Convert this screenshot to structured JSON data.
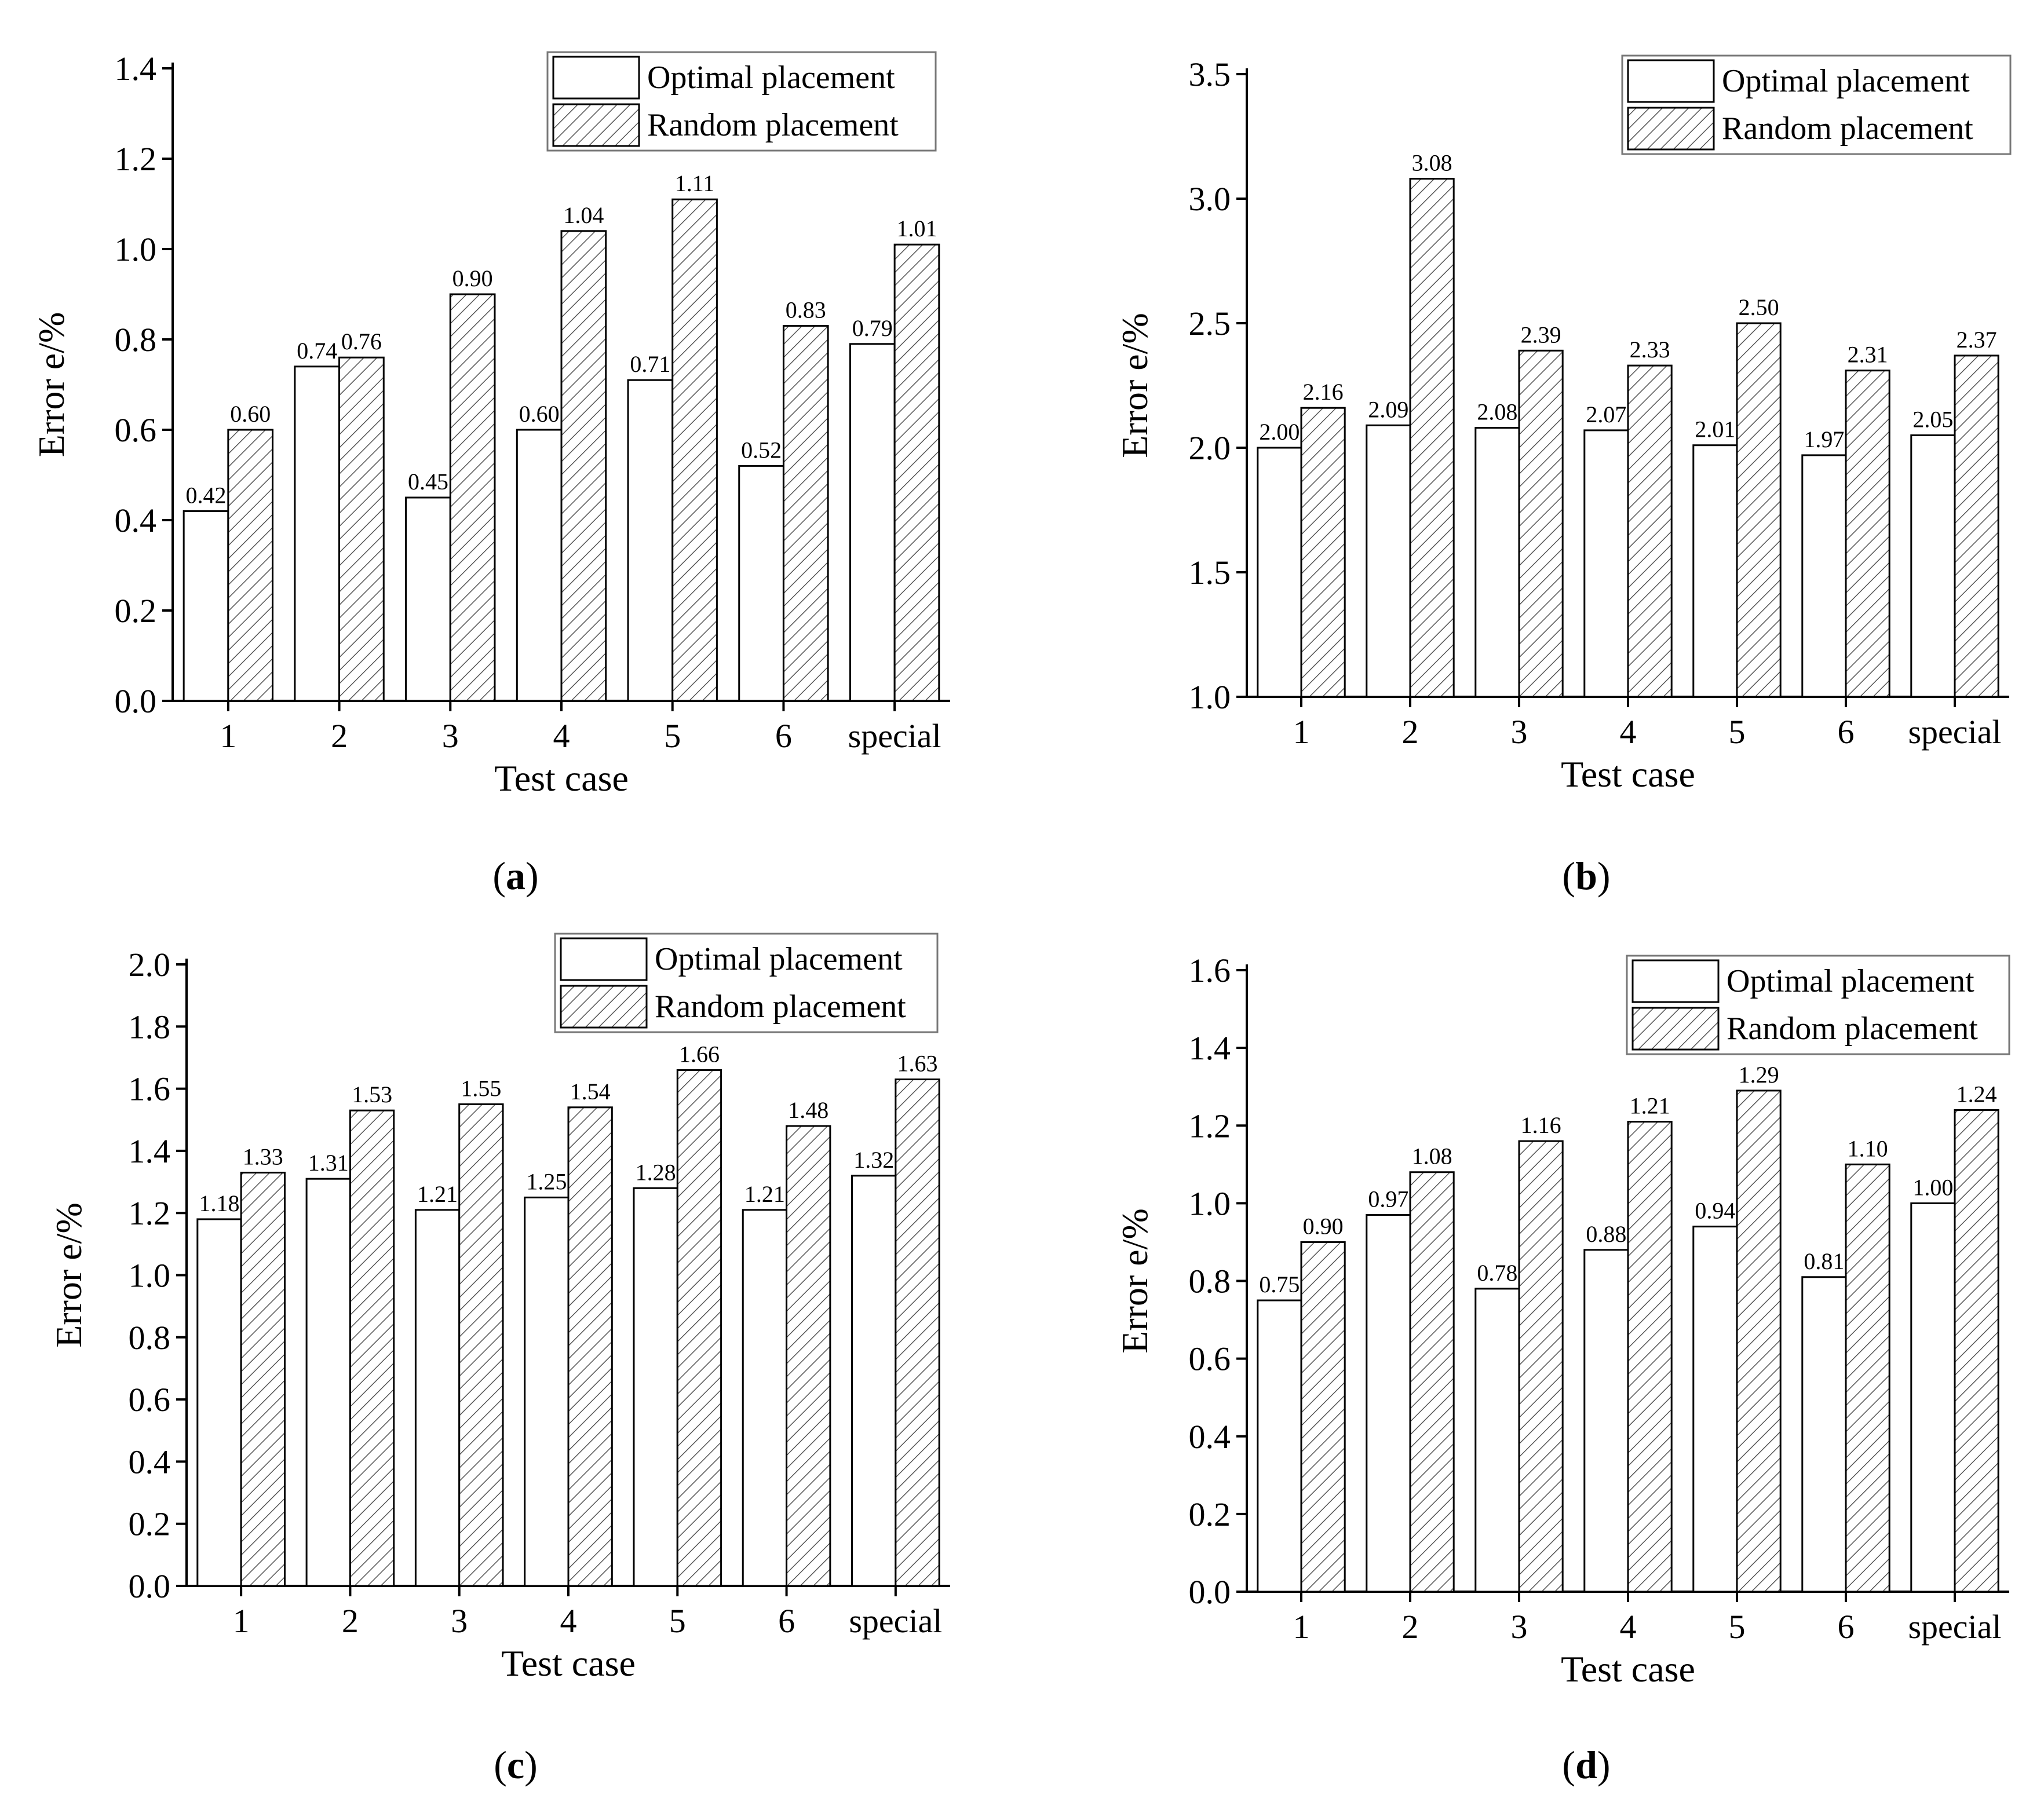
{
  "figure": {
    "panel_count": 4
  },
  "chart_data": [
    {
      "type": "bar",
      "panel": "a",
      "xlabel": "Test case",
      "ylabel": "Error e/%",
      "ylim": [
        0,
        1.4
      ],
      "yticks": [
        "0.0",
        "0.2",
        "0.4",
        "0.6",
        "0.8",
        "1.0",
        "1.2",
        "1.4"
      ],
      "categories": [
        "1",
        "2",
        "3",
        "4",
        "5",
        "6",
        "special"
      ],
      "legend_position": "top-right",
      "series": [
        {
          "name": "Optimal placement",
          "pattern": "plain",
          "values": [
            0.42,
            0.74,
            0.45,
            0.6,
            0.71,
            0.52,
            0.79
          ],
          "labels": [
            "0.42",
            "0.74",
            "0.45",
            "0.60",
            "0.71",
            "0.52",
            "0.79"
          ]
        },
        {
          "name": "Random placement",
          "pattern": "hatched",
          "values": [
            0.6,
            0.76,
            0.9,
            1.04,
            1.11,
            0.83,
            1.01
          ],
          "labels": [
            "0.60",
            "0.76",
            "0.90",
            "1.04",
            "1.11",
            "0.83",
            "1.01"
          ]
        }
      ]
    },
    {
      "type": "bar",
      "panel": "b",
      "xlabel": "Test case",
      "ylabel": "Error e/%",
      "ylim": [
        1.0,
        3.5
      ],
      "yticks": [
        "1.0",
        "1.5",
        "2.0",
        "2.5",
        "3.0",
        "3.5"
      ],
      "categories": [
        "1",
        "2",
        "3",
        "4",
        "5",
        "6",
        "special"
      ],
      "legend_position": "top-right",
      "series": [
        {
          "name": "Optimal placement",
          "pattern": "plain",
          "values": [
            2.0,
            2.09,
            2.08,
            2.07,
            2.01,
            1.97,
            2.05
          ],
          "labels": [
            "2.00",
            "2.09",
            "2.08",
            "2.07",
            "2.01",
            "1.97",
            "2.05"
          ]
        },
        {
          "name": "Random placement",
          "pattern": "hatched",
          "values": [
            2.16,
            3.08,
            2.39,
            2.33,
            2.5,
            2.31,
            2.37
          ],
          "labels": [
            "2.16",
            "3.08",
            "2.39",
            "2.33",
            "2.50",
            "2.31",
            "2.37"
          ]
        }
      ]
    },
    {
      "type": "bar",
      "panel": "c",
      "xlabel": "Test case",
      "ylabel": "Error e/%",
      "ylim": [
        0,
        2.0
      ],
      "yticks": [
        "0.0",
        "0.2",
        "0.4",
        "0.6",
        "0.8",
        "1.0",
        "1.2",
        "1.4",
        "1.6",
        "1.8",
        "2.0"
      ],
      "categories": [
        "1",
        "2",
        "3",
        "4",
        "5",
        "6",
        "special"
      ],
      "legend_position": "top-right",
      "series": [
        {
          "name": "Optimal placement",
          "pattern": "plain",
          "values": [
            1.18,
            1.31,
            1.21,
            1.25,
            1.28,
            1.21,
            1.32
          ],
          "labels": [
            "1.18",
            "1.31",
            "1.21",
            "1.25",
            "1.28",
            "1.21",
            "1.32"
          ]
        },
        {
          "name": "Random placement",
          "pattern": "hatched",
          "values": [
            1.33,
            1.53,
            1.55,
            1.54,
            1.66,
            1.48,
            1.63
          ],
          "labels": [
            "1.33",
            "1.53",
            "1.55",
            "1.54",
            "1.66",
            "1.48",
            "1.63"
          ]
        }
      ]
    },
    {
      "type": "bar",
      "panel": "d",
      "xlabel": "Test case",
      "ylabel": "Error e/%",
      "ylim": [
        0,
        1.6
      ],
      "yticks": [
        "0.0",
        "0.2",
        "0.4",
        "0.6",
        "0.8",
        "1.0",
        "1.2",
        "1.4",
        "1.6"
      ],
      "categories": [
        "1",
        "2",
        "3",
        "4",
        "5",
        "6",
        "special"
      ],
      "legend_position": "top-right",
      "series": [
        {
          "name": "Optimal placement",
          "pattern": "plain",
          "values": [
            0.75,
            0.97,
            0.78,
            0.88,
            0.94,
            0.81,
            1.0
          ],
          "labels": [
            "0.75",
            "0.97",
            "0.78",
            "0.88",
            "0.94",
            "0.81",
            "1.00"
          ]
        },
        {
          "name": "Random placement",
          "pattern": "hatched",
          "values": [
            0.9,
            1.08,
            1.16,
            1.21,
            1.29,
            1.1,
            1.24
          ],
          "labels": [
            "0.90",
            "1.08",
            "1.16",
            "1.21",
            "1.29",
            "1.10",
            "1.24"
          ]
        }
      ]
    }
  ]
}
